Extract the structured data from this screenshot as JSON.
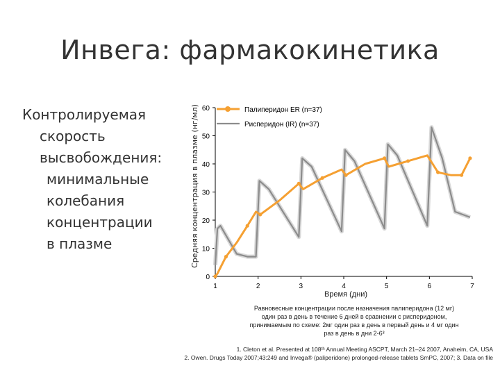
{
  "slide": {
    "title": "Инвега: фармакокинетика",
    "bullets": [
      "Контролируемая",
      "скорость",
      "высвобождения:",
      "минимальные",
      "колебания",
      "концентрации",
      "в плазме"
    ],
    "caption": [
      "Равновесные концентрации после назначения палиперидона (12 мг)",
      "один раз в день в течение 6 дней в сравнении с рисперидоном,",
      "принимаемым по схеме: 2мг один раз в день в первый день и 4 мг один",
      "раз в день в дни 2-6³"
    ],
    "references": [
      "1. Cleton et al. Presented at 108ᵗʰ Annual Meeting ASCPT, March 21–24 2007, Anaheim, CA, USA",
      "2. Owen. Drugs Today 2007;43:249 and Invega® (paliperidone) prolonged-release tablets SmPC, 2007; 3. Data on file"
    ]
  },
  "chart_data": {
    "type": "line",
    "ylabel": "Средняя концентрация в плазме (нг/мл)",
    "xlabel": "Время (дни)",
    "ylim": [
      0,
      60
    ],
    "xlim": [
      1,
      7
    ],
    "xticks": [
      "1",
      "2",
      "3",
      "4",
      "5",
      "6",
      "7"
    ],
    "yticks": [
      "0",
      "10",
      "20",
      "30",
      "40",
      "50",
      "60"
    ],
    "legend": [
      "Палиперидон ER (n=37)",
      "Рисперидон (IR) (n=37)"
    ],
    "colors": {
      "paliperidone": "#f5a032",
      "risperidone": "#8c8c8c",
      "axis": "#000000"
    },
    "series": [
      {
        "name": "Палиперидон ER (n=37)",
        "x": [
          1.0,
          1.05,
          1.25,
          1.5,
          1.75,
          1.95,
          2.05,
          2.5,
          2.95,
          3.05,
          3.5,
          3.95,
          4.05,
          4.5,
          4.95,
          5.05,
          5.5,
          5.95,
          6.2,
          6.5,
          6.75,
          6.95
        ],
        "y": [
          0,
          1,
          7,
          12,
          18,
          23,
          22,
          27,
          33,
          31,
          35,
          38,
          36,
          40,
          42,
          39,
          41,
          43,
          37,
          36,
          36,
          42
        ]
      },
      {
        "name": "Рисперидон (IR) (n=37)",
        "x": [
          1.0,
          1.05,
          1.12,
          1.5,
          1.75,
          1.95,
          2.03,
          2.25,
          2.95,
          3.03,
          3.25,
          3.95,
          4.03,
          4.25,
          4.95,
          5.03,
          5.25,
          5.95,
          6.05,
          6.3,
          6.6,
          6.95
        ],
        "y": [
          4,
          17,
          18,
          8,
          7,
          7,
          34,
          31,
          14,
          42,
          39,
          16,
          45,
          41,
          17,
          47,
          43,
          18,
          53,
          42,
          23,
          21
        ]
      }
    ]
  }
}
